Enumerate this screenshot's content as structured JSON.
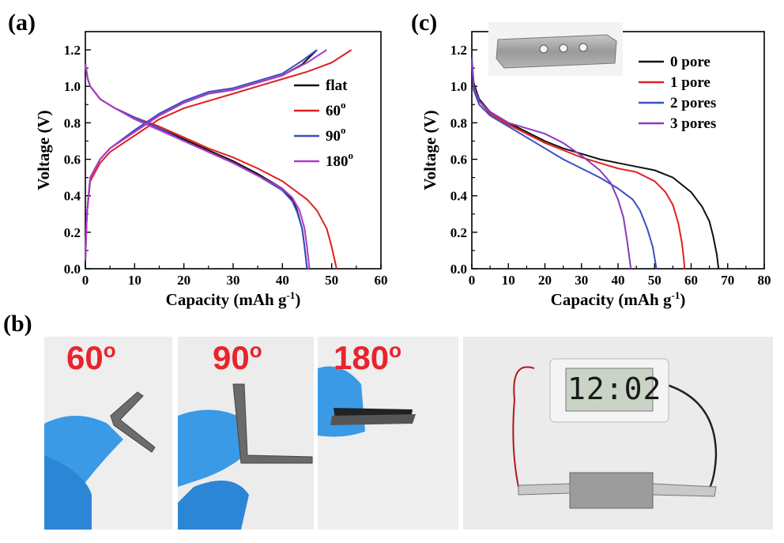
{
  "panels": {
    "a": "(a)",
    "b": "(b)",
    "c": "(c)"
  },
  "chart_data": [
    {
      "type": "line",
      "panel": "(a)",
      "xlabel": "Capacity (mAh g",
      "xlabel_sup": "-1",
      "xlabel_end": ")",
      "ylabel": "Voltage (V)",
      "xlim": [
        0,
        60
      ],
      "ylim": [
        0,
        1.3
      ],
      "xticks": [
        0,
        10,
        20,
        30,
        40,
        50,
        60
      ],
      "yticks": [
        0.0,
        0.2,
        0.4,
        0.6,
        0.8,
        1.0,
        1.2
      ],
      "ytick_labels": [
        "0.0",
        "0.2",
        "0.4",
        "0.6",
        "0.8",
        "1.0",
        "1.2"
      ],
      "grid": false,
      "legend_position": "right",
      "series": [
        {
          "name": "flat",
          "color": "#111111",
          "sup": "",
          "discharge": [
            [
              0,
              1.12
            ],
            [
              0.5,
              1.04
            ],
            [
              1,
              1.0
            ],
            [
              3,
              0.93
            ],
            [
              6,
              0.88
            ],
            [
              10,
              0.83
            ],
            [
              15,
              0.77
            ],
            [
              20,
              0.71
            ],
            [
              25,
              0.65
            ],
            [
              30,
              0.59
            ],
            [
              35,
              0.52
            ],
            [
              40,
              0.44
            ],
            [
              42,
              0.38
            ],
            [
              43,
              0.32
            ],
            [
              44,
              0.22
            ],
            [
              44.5,
              0.12
            ],
            [
              45,
              0.0
            ]
          ],
          "charge": [
            [
              0,
              0.05
            ],
            [
              0.3,
              0.3
            ],
            [
              1,
              0.5
            ],
            [
              3,
              0.6
            ],
            [
              5,
              0.66
            ],
            [
              10,
              0.75
            ],
            [
              15,
              0.84
            ],
            [
              20,
              0.91
            ],
            [
              25,
              0.96
            ],
            [
              30,
              0.98
            ],
            [
              35,
              1.02
            ],
            [
              40,
              1.06
            ],
            [
              44,
              1.12
            ],
            [
              47,
              1.2
            ]
          ]
        },
        {
          "name": "60",
          "color": "#e02020",
          "sup": "o",
          "discharge": [
            [
              0,
              1.12
            ],
            [
              0.5,
              1.04
            ],
            [
              1,
              1.0
            ],
            [
              3,
              0.93
            ],
            [
              6,
              0.88
            ],
            [
              10,
              0.83
            ],
            [
              15,
              0.78
            ],
            [
              20,
              0.72
            ],
            [
              25,
              0.66
            ],
            [
              30,
              0.61
            ],
            [
              35,
              0.55
            ],
            [
              40,
              0.48
            ],
            [
              45,
              0.38
            ],
            [
              47,
              0.32
            ],
            [
              49,
              0.22
            ],
            [
              50,
              0.12
            ],
            [
              51,
              0.0
            ]
          ],
          "charge": [
            [
              0,
              0.05
            ],
            [
              0.3,
              0.3
            ],
            [
              1,
              0.48
            ],
            [
              3,
              0.58
            ],
            [
              5,
              0.64
            ],
            [
              10,
              0.73
            ],
            [
              15,
              0.82
            ],
            [
              20,
              0.88
            ],
            [
              25,
              0.92
            ],
            [
              30,
              0.96
            ],
            [
              35,
              1.0
            ],
            [
              40,
              1.04
            ],
            [
              45,
              1.08
            ],
            [
              50,
              1.13
            ],
            [
              54,
              1.2
            ]
          ]
        },
        {
          "name": "90",
          "color": "#3a4fc1",
          "sup": "o",
          "discharge": [
            [
              0,
              1.12
            ],
            [
              0.5,
              1.04
            ],
            [
              1,
              1.0
            ],
            [
              3,
              0.93
            ],
            [
              6,
              0.88
            ],
            [
              10,
              0.83
            ],
            [
              15,
              0.77
            ],
            [
              20,
              0.7
            ],
            [
              25,
              0.64
            ],
            [
              30,
              0.58
            ],
            [
              35,
              0.51
            ],
            [
              40,
              0.43
            ],
            [
              42,
              0.37
            ],
            [
              43,
              0.31
            ],
            [
              44,
              0.22
            ],
            [
              44.5,
              0.12
            ],
            [
              45,
              0.0
            ]
          ],
          "charge": [
            [
              0,
              0.05
            ],
            [
              0.3,
              0.3
            ],
            [
              1,
              0.5
            ],
            [
              3,
              0.6
            ],
            [
              5,
              0.66
            ],
            [
              10,
              0.76
            ],
            [
              15,
              0.85
            ],
            [
              20,
              0.92
            ],
            [
              25,
              0.97
            ],
            [
              30,
              0.99
            ],
            [
              35,
              1.03
            ],
            [
              40,
              1.07
            ],
            [
              44,
              1.14
            ],
            [
              47,
              1.2
            ]
          ]
        },
        {
          "name": "180",
          "color": "#b03ac8",
          "sup": "o",
          "discharge": [
            [
              0,
              1.12
            ],
            [
              0.5,
              1.04
            ],
            [
              1,
              1.0
            ],
            [
              3,
              0.93
            ],
            [
              6,
              0.88
            ],
            [
              10,
              0.82
            ],
            [
              15,
              0.76
            ],
            [
              20,
              0.7
            ],
            [
              25,
              0.64
            ],
            [
              30,
              0.58
            ],
            [
              35,
              0.51
            ],
            [
              40,
              0.44
            ],
            [
              42,
              0.39
            ],
            [
              43.5,
              0.32
            ],
            [
              44.5,
              0.22
            ],
            [
              45,
              0.12
            ],
            [
              45.5,
              0.0
            ]
          ],
          "charge": [
            [
              0,
              0.05
            ],
            [
              0.3,
              0.3
            ],
            [
              1,
              0.5
            ],
            [
              3,
              0.6
            ],
            [
              5,
              0.66
            ],
            [
              10,
              0.75
            ],
            [
              15,
              0.84
            ],
            [
              20,
              0.91
            ],
            [
              25,
              0.96
            ],
            [
              30,
              0.98
            ],
            [
              35,
              1.02
            ],
            [
              40,
              1.06
            ],
            [
              45,
              1.13
            ],
            [
              49,
              1.2
            ]
          ]
        }
      ]
    },
    {
      "type": "line",
      "panel": "(c)",
      "xlabel": "Capacity (mAh g",
      "xlabel_sup": "-1",
      "xlabel_end": ")",
      "ylabel": "Voltage (V)",
      "xlim": [
        0,
        80
      ],
      "ylim": [
        0,
        1.3
      ],
      "xticks": [
        0,
        10,
        20,
        30,
        40,
        50,
        60,
        70,
        80
      ],
      "yticks": [
        0.0,
        0.2,
        0.4,
        0.6,
        0.8,
        1.0,
        1.2
      ],
      "ytick_labels": [
        "0.0",
        "0.2",
        "0.4",
        "0.6",
        "0.8",
        "1.0",
        "1.2"
      ],
      "grid": false,
      "legend_position": "top-right",
      "series": [
        {
          "name": "0 pore",
          "color": "#111111",
          "points": [
            [
              0,
              1.15
            ],
            [
              0.5,
              1.02
            ],
            [
              2,
              0.93
            ],
            [
              5,
              0.86
            ],
            [
              10,
              0.8
            ],
            [
              15,
              0.75
            ],
            [
              20,
              0.7
            ],
            [
              25,
              0.66
            ],
            [
              30,
              0.63
            ],
            [
              35,
              0.6
            ],
            [
              40,
              0.58
            ],
            [
              45,
              0.56
            ],
            [
              50,
              0.54
            ],
            [
              55,
              0.5
            ],
            [
              60,
              0.42
            ],
            [
              63,
              0.34
            ],
            [
              65,
              0.26
            ],
            [
              66,
              0.18
            ],
            [
              67,
              0.08
            ],
            [
              67.5,
              0.0
            ]
          ]
        },
        {
          "name": "1 pore",
          "color": "#e02020",
          "points": [
            [
              0,
              1.15
            ],
            [
              0.5,
              1.0
            ],
            [
              2,
              0.92
            ],
            [
              5,
              0.85
            ],
            [
              10,
              0.79
            ],
            [
              15,
              0.74
            ],
            [
              20,
              0.69
            ],
            [
              25,
              0.65
            ],
            [
              30,
              0.61
            ],
            [
              35,
              0.58
            ],
            [
              40,
              0.55
            ],
            [
              45,
              0.53
            ],
            [
              50,
              0.48
            ],
            [
              53,
              0.42
            ],
            [
              55,
              0.35
            ],
            [
              56.5,
              0.25
            ],
            [
              57.5,
              0.14
            ],
            [
              58,
              0.05
            ],
            [
              58.2,
              0.0
            ]
          ]
        },
        {
          "name": "2 pores",
          "color": "#3a4fc1",
          "points": [
            [
              0,
              1.15
            ],
            [
              0.5,
              0.98
            ],
            [
              2,
              0.9
            ],
            [
              5,
              0.84
            ],
            [
              10,
              0.78
            ],
            [
              15,
              0.72
            ],
            [
              20,
              0.66
            ],
            [
              25,
              0.6
            ],
            [
              30,
              0.55
            ],
            [
              35,
              0.5
            ],
            [
              40,
              0.44
            ],
            [
              44,
              0.38
            ],
            [
              46,
              0.32
            ],
            [
              48,
              0.22
            ],
            [
              49.5,
              0.12
            ],
            [
              50.5,
              0.0
            ]
          ]
        },
        {
          "name": "3 pores",
          "color": "#8a3ac0",
          "points": [
            [
              0,
              1.15
            ],
            [
              0.5,
              1.0
            ],
            [
              2,
              0.92
            ],
            [
              5,
              0.86
            ],
            [
              10,
              0.8
            ],
            [
              15,
              0.77
            ],
            [
              20,
              0.74
            ],
            [
              25,
              0.69
            ],
            [
              30,
              0.62
            ],
            [
              35,
              0.54
            ],
            [
              38,
              0.47
            ],
            [
              40,
              0.38
            ],
            [
              41.5,
              0.28
            ],
            [
              42.5,
              0.15
            ],
            [
              43.5,
              0.0
            ]
          ]
        }
      ]
    }
  ],
  "photos": [
    {
      "label": "60",
      "sup": "o",
      "label_color": "#e8242c"
    },
    {
      "label": "90",
      "sup": "o",
      "label_color": "#e8242c"
    },
    {
      "label": "180",
      "sup": "o",
      "label_color": "#e8242c"
    },
    {
      "clock_text": "12:02"
    }
  ]
}
